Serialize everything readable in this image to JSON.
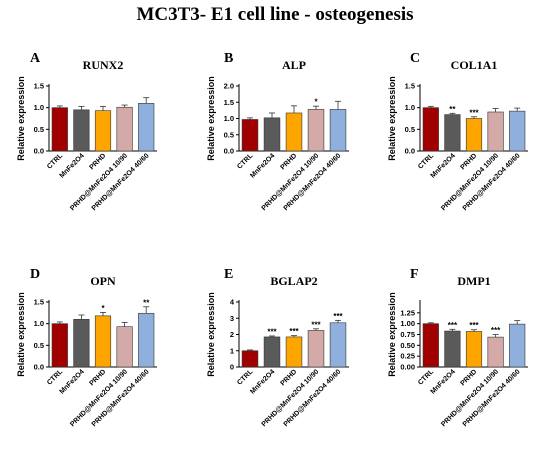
{
  "figure_title": "MC3T3- E1 cell line - osteogenesis",
  "colors": [
    "#a00000",
    "#5a5a5a",
    "#ffa500",
    "#d4aaa8",
    "#8fb0dc"
  ],
  "chart_data": [
    {
      "letter": "A",
      "title": "RUNX2",
      "type": "bar",
      "categories": [
        "CTRL",
        "MnFe2O4",
        "PRHD",
        "PRHD@MnFe2O4 10/90",
        "PRHD@MnFe2O4 40/60"
      ],
      "values": [
        1.0,
        0.95,
        0.93,
        1.01,
        1.1
      ],
      "errors": [
        0.04,
        0.08,
        0.1,
        0.05,
        0.13
      ],
      "significance": [
        "",
        "",
        "",
        "",
        ""
      ],
      "ylabel": "Relative expression",
      "ylim": [
        0,
        1.5
      ],
      "yticks": [
        "0.0",
        "0.5",
        "1.0",
        "1.5"
      ],
      "ytick_values": [
        0,
        0.5,
        1.0,
        1.5
      ]
    },
    {
      "letter": "B",
      "title": "ALP",
      "type": "bar",
      "categories": [
        "CTRL",
        "MnFe2O4",
        "PRHD",
        "PRHD@MnFe2O4 10/90",
        "PRHD@MnFe2O4 40/60"
      ],
      "values": [
        0.97,
        1.02,
        1.17,
        1.28,
        1.28
      ],
      "errors": [
        0.05,
        0.15,
        0.22,
        0.1,
        0.25
      ],
      "significance": [
        "",
        "",
        "",
        "*",
        ""
      ],
      "ylabel": "Relative expression",
      "ylim": [
        0,
        2.0
      ],
      "yticks": [
        "0.0",
        "0.5",
        "1.0",
        "1.5",
        "2.0"
      ],
      "ytick_values": [
        0,
        0.5,
        1.0,
        1.5,
        2.0
      ]
    },
    {
      "letter": "C",
      "title": "COL1A1",
      "type": "bar",
      "categories": [
        "CTRL",
        "MnFe2O4",
        "PRHD",
        "PRHD@MnFe2O4 10/90",
        "PRHD@MnFe2O4 40/60"
      ],
      "values": [
        1.0,
        0.84,
        0.75,
        0.9,
        0.92
      ],
      "errors": [
        0.03,
        0.03,
        0.04,
        0.08,
        0.07
      ],
      "significance": [
        "",
        "**",
        "***",
        "",
        ""
      ],
      "ylabel": "Relative expression",
      "ylim": [
        0,
        1.5
      ],
      "yticks": [
        "0.0",
        "0.5",
        "1.0",
        "1.5"
      ],
      "ytick_values": [
        0,
        0.5,
        1.0,
        1.5
      ]
    },
    {
      "letter": "D",
      "title": "OPN",
      "type": "bar",
      "categories": [
        "CTRL",
        "MnFe2O4",
        "PRHD",
        "PRHD@MnFe2O4 10/90",
        "PRHD@MnFe2O4 40/60"
      ],
      "values": [
        1.0,
        1.1,
        1.18,
        0.93,
        1.24
      ],
      "errors": [
        0.04,
        0.1,
        0.08,
        0.1,
        0.15
      ],
      "significance": [
        "",
        "",
        "*",
        "",
        "**"
      ],
      "ylabel": "Relative expression",
      "ylim": [
        0,
        1.5
      ],
      "yticks": [
        "0.0",
        "0.5",
        "1.0",
        "1.5"
      ],
      "ytick_values": [
        0,
        0.5,
        1.0,
        1.5
      ]
    },
    {
      "letter": "E",
      "title": "BGLAP2",
      "type": "bar",
      "categories": [
        "CTRL",
        "MnFe2O4",
        "PRHD",
        "PRHD@MnFe2O4 10/90",
        "PRHD@MnFe2O4 40/60"
      ],
      "values": [
        1.0,
        1.85,
        1.85,
        2.25,
        2.72
      ],
      "errors": [
        0.05,
        0.06,
        0.08,
        0.1,
        0.15
      ],
      "significance": [
        "",
        "***",
        "***",
        "***",
        "***"
      ],
      "ylabel": "Relative expression",
      "ylim": [
        0,
        4
      ],
      "yticks": [
        "0",
        "1",
        "2",
        "3",
        "4"
      ],
      "ytick_values": [
        0,
        1,
        2,
        3,
        4
      ]
    },
    {
      "letter": "F",
      "title": "DMP1",
      "type": "bar",
      "categories": [
        "CTRL",
        "MnFe2O4",
        "PRHD",
        "PRHD@MnFe2O4 10/90",
        "PRHD@MnFe2O4 40/60"
      ],
      "values": [
        1.0,
        0.83,
        0.82,
        0.69,
        0.99
      ],
      "errors": [
        0.02,
        0.04,
        0.04,
        0.06,
        0.08
      ],
      "significance": [
        "",
        "***",
        "***",
        "***",
        ""
      ],
      "ylabel": "Relative expression",
      "ylim": [
        0,
        1.5
      ],
      "yticks": [
        "0.00",
        "0.25",
        "0.50",
        "0.75",
        "1.00",
        "1.25"
      ],
      "ytick_values": [
        0,
        0.25,
        0.5,
        0.75,
        1.0,
        1.25
      ]
    }
  ]
}
